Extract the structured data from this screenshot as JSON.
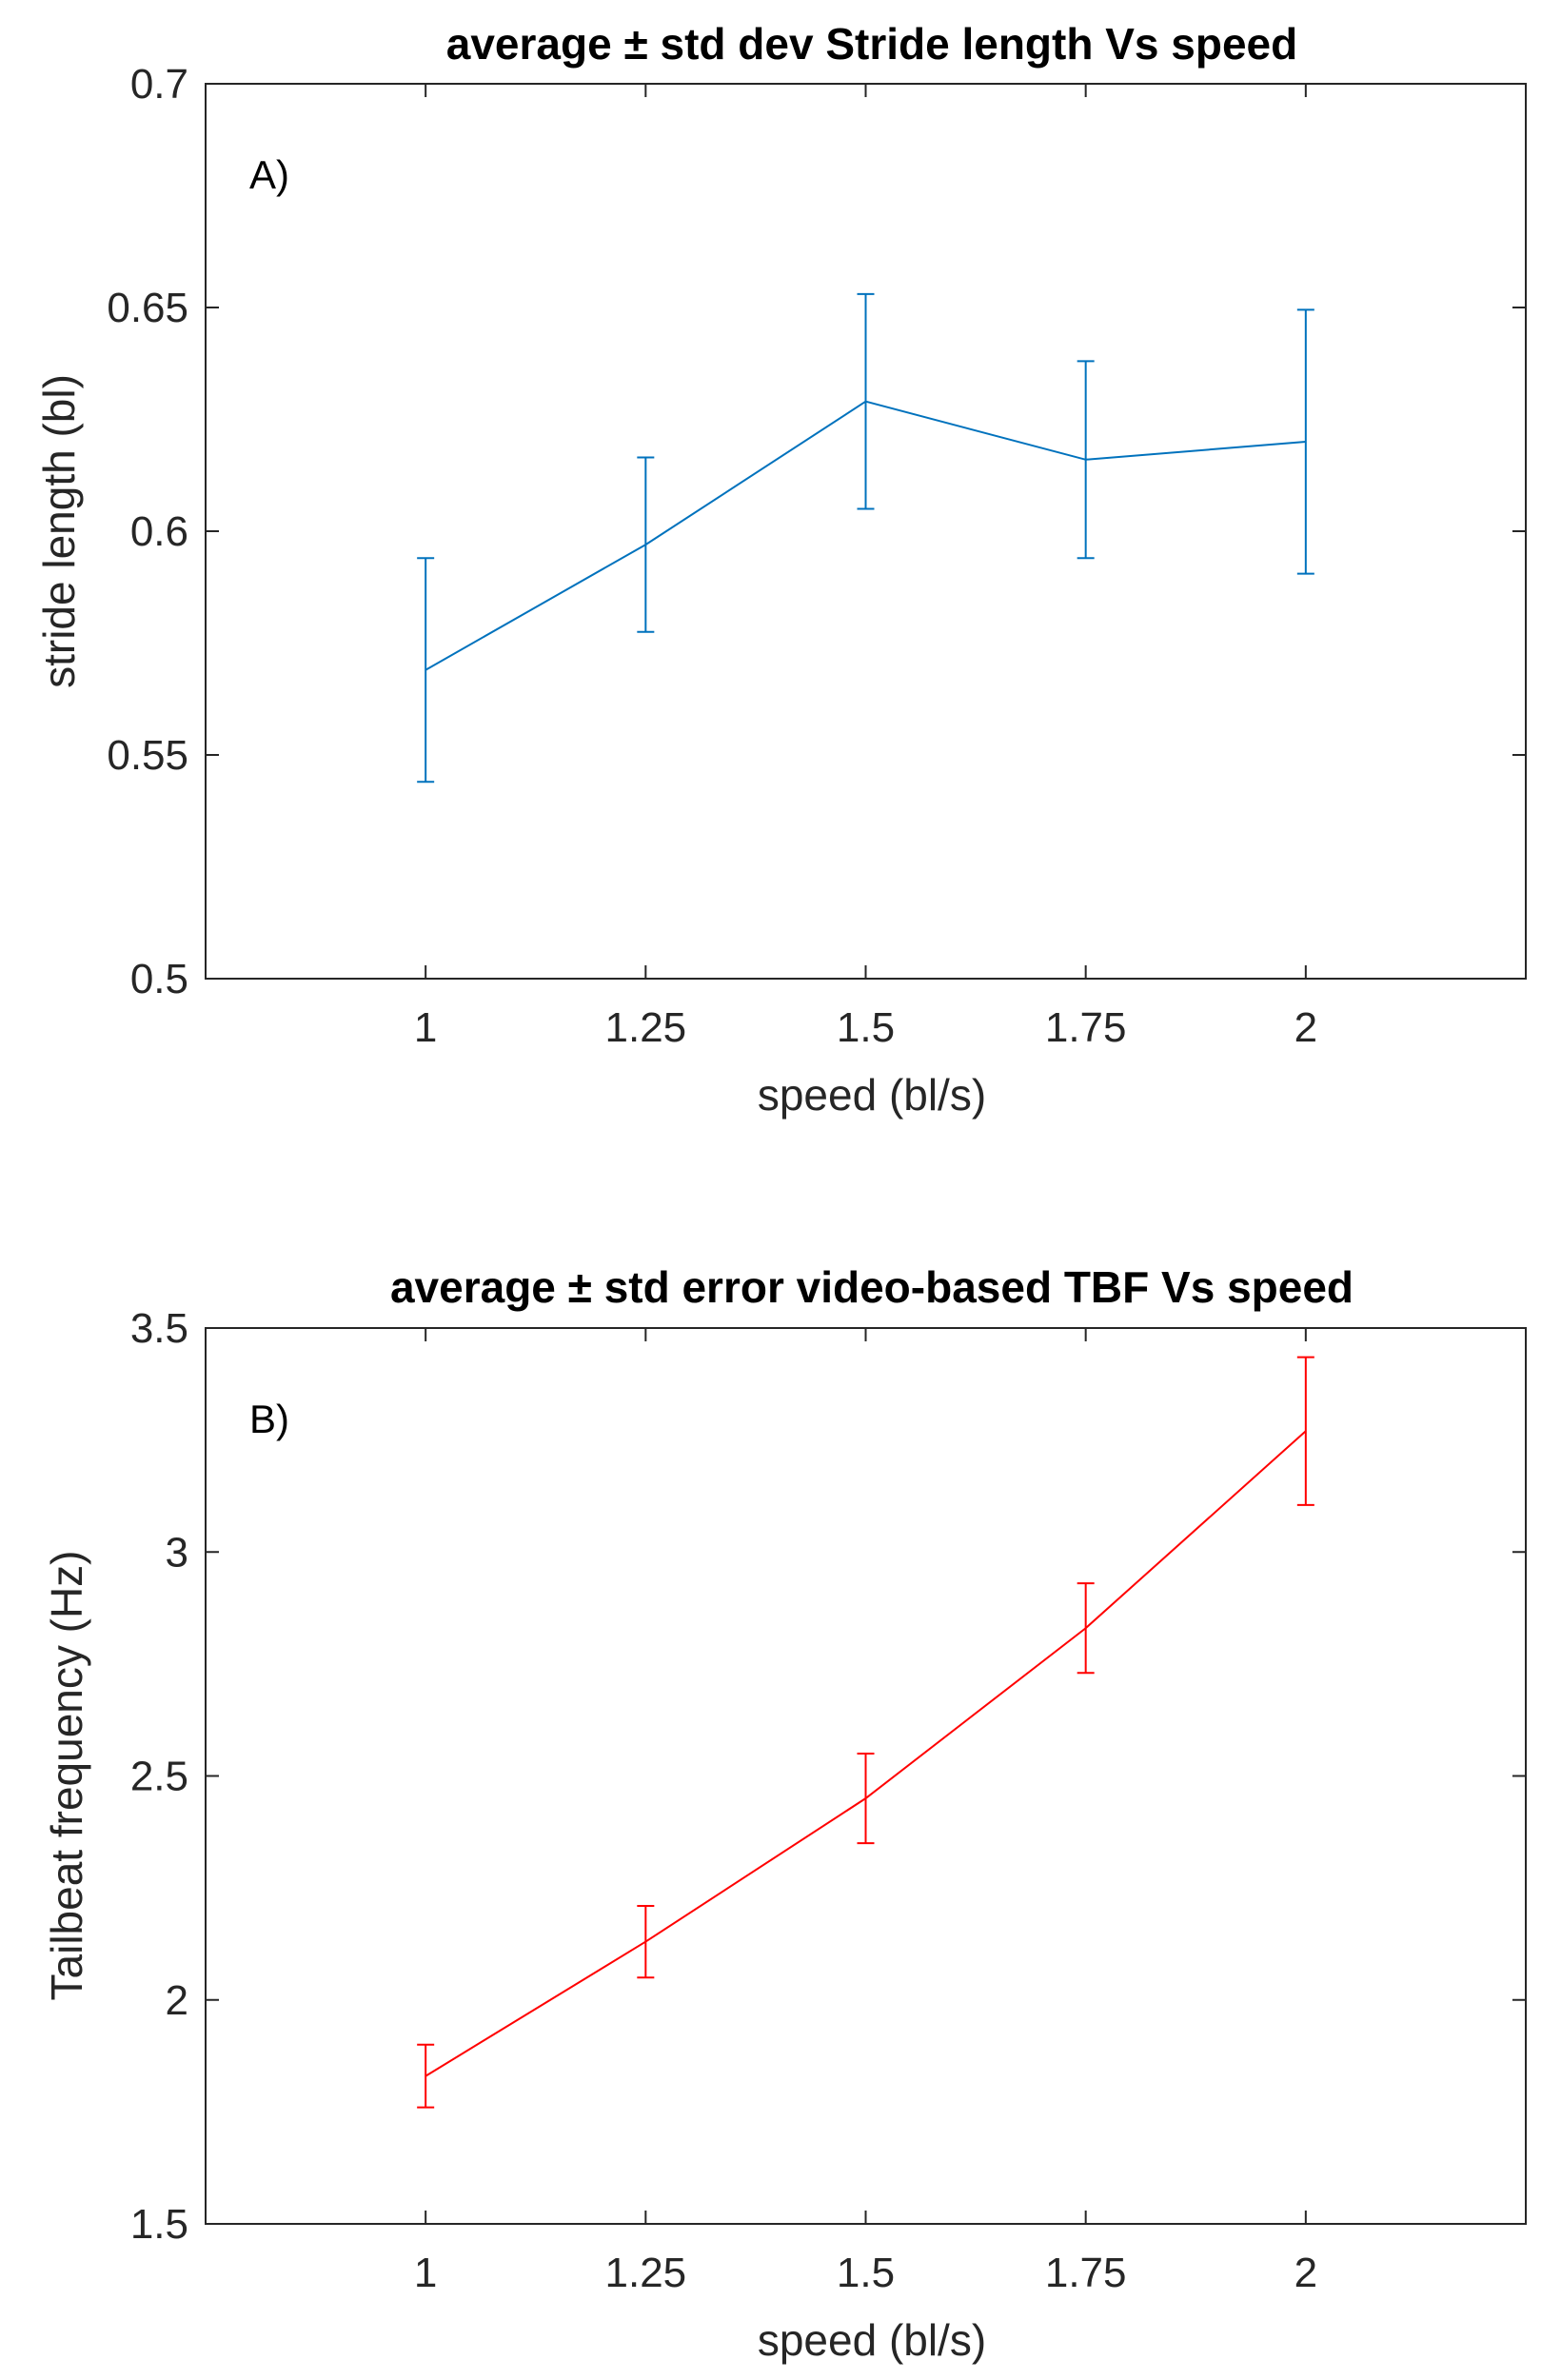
{
  "chart_data": [
    {
      "type": "line",
      "panel_label": "A)",
      "title": "average ± std dev Stride length Vs speed",
      "xlabel": "speed (bl/s)",
      "ylabel": "stride length (bl)",
      "x": [
        1,
        1.25,
        1.5,
        1.75,
        2
      ],
      "x_tick_labels": [
        "1",
        "1.25",
        "1.5",
        "1.75",
        "2"
      ],
      "xlim": [
        0.75,
        2.25
      ],
      "y_ticks": [
        0.5,
        0.55,
        0.6,
        0.65,
        0.7
      ],
      "y_tick_labels": [
        "0.5",
        "0.55",
        "0.6",
        "0.65",
        "0.7"
      ],
      "ylim": [
        0.5,
        0.7
      ],
      "grid": false,
      "series": [
        {
          "name": "stride length",
          "color": "#0072BD",
          "values": [
            0.569,
            0.597,
            0.629,
            0.616,
            0.62
          ],
          "error": [
            0.025,
            0.0195,
            0.024,
            0.022,
            0.0295
          ]
        }
      ]
    },
    {
      "type": "line",
      "panel_label": "B)",
      "title": "average ± std error video-based TBF Vs speed",
      "xlabel": "speed (bl/s)",
      "ylabel": "Tailbeat frequency (Hz)",
      "x": [
        1,
        1.25,
        1.5,
        1.75,
        2
      ],
      "x_tick_labels": [
        "1",
        "1.25",
        "1.5",
        "1.75",
        "2"
      ],
      "xlim": [
        0.75,
        2.25
      ],
      "y_ticks": [
        1.5,
        2,
        2.5,
        3,
        3.5
      ],
      "y_tick_labels": [
        "1.5",
        "2",
        "2.5",
        "3",
        "3.5"
      ],
      "ylim": [
        1.5,
        3.5
      ],
      "grid": false,
      "series": [
        {
          "name": "tailbeat frequency",
          "color": "#FF0000",
          "values": [
            1.83,
            2.13,
            2.45,
            2.83,
            3.27
          ],
          "error": [
            0.07,
            0.08,
            0.1,
            0.1,
            0.165
          ]
        }
      ]
    }
  ]
}
